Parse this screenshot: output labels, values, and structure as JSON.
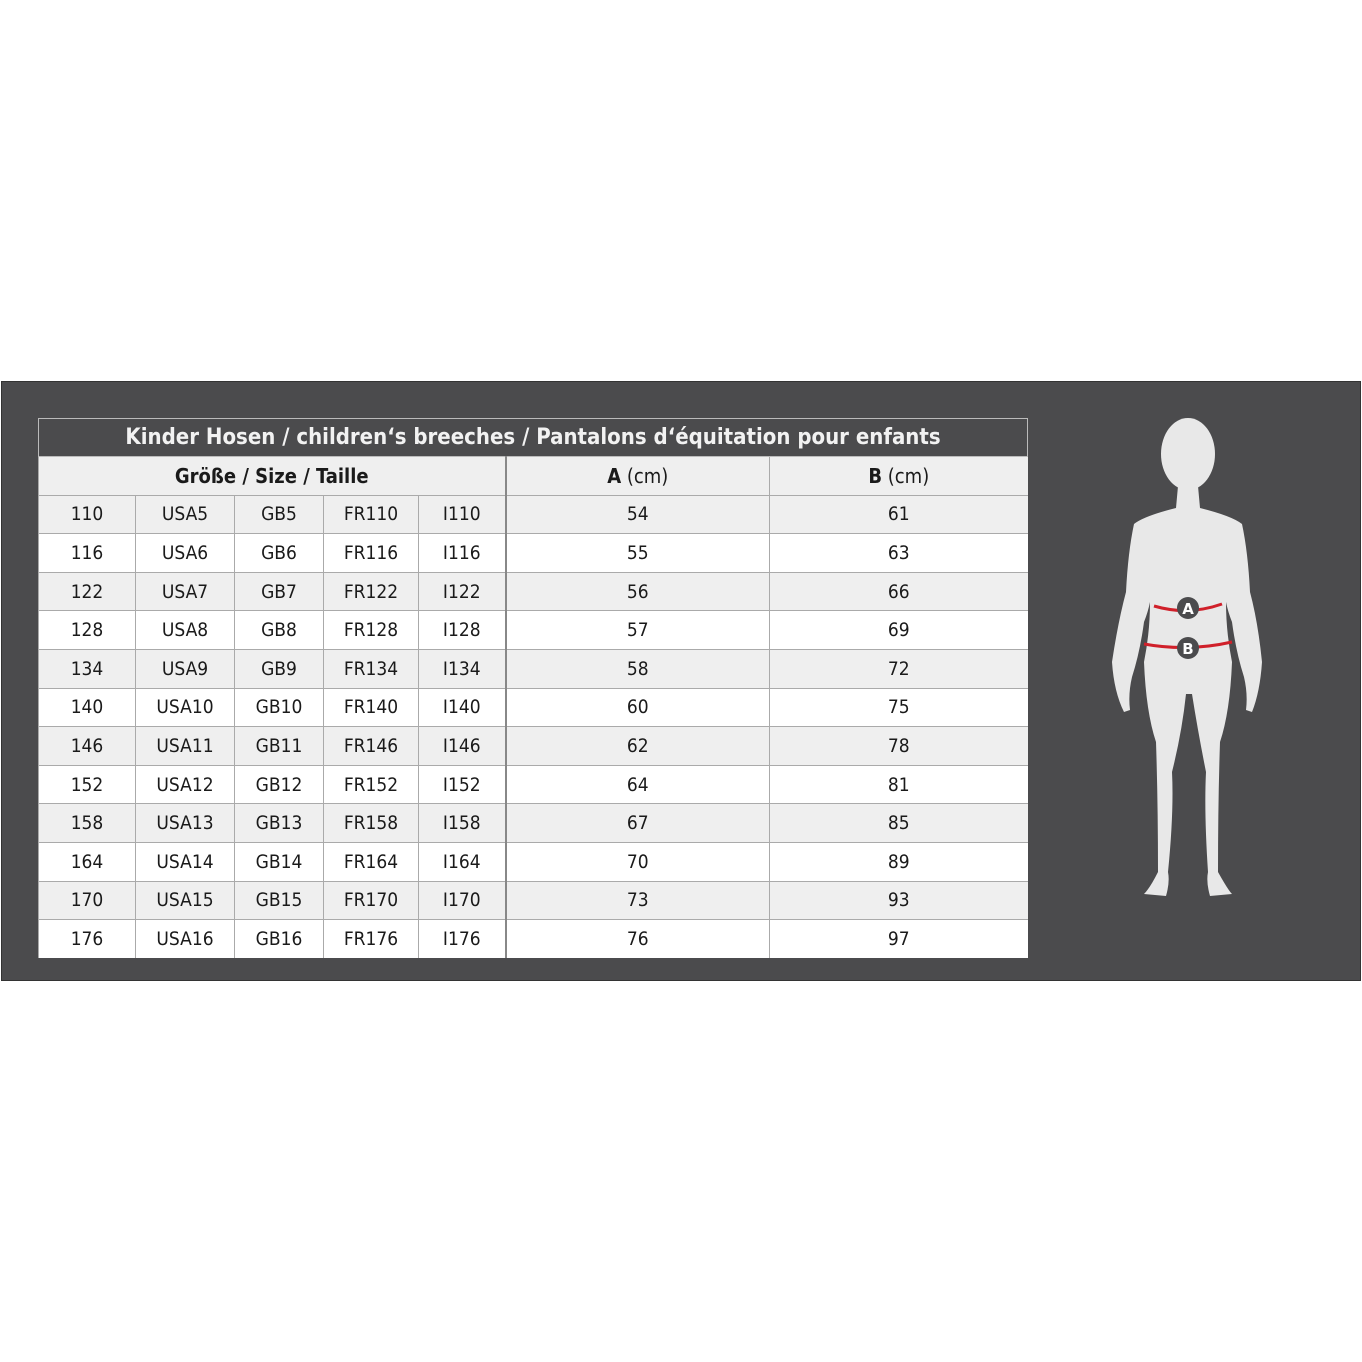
{
  "title": "Kinder Hosen / children‘s breeches /  Pantalons d‘équitation pour enfants",
  "headers": {
    "size": "Größe / Size / Taille",
    "a_label": "A",
    "a_unit": " (cm)",
    "b_label": "B",
    "b_unit": " (cm)"
  },
  "rows": [
    [
      "110",
      "USA5",
      "GB5",
      "FR110",
      "I110",
      "54",
      "61"
    ],
    [
      "116",
      "USA6",
      "GB6",
      "FR116",
      "I116",
      "55",
      "63"
    ],
    [
      "122",
      "USA7",
      "GB7",
      "FR122",
      "I122",
      "56",
      "66"
    ],
    [
      "128",
      "USA8",
      "GB8",
      "FR128",
      "I128",
      "57",
      "69"
    ],
    [
      "134",
      "USA9",
      "GB9",
      "FR134",
      "I134",
      "58",
      "72"
    ],
    [
      "140",
      "USA10",
      "GB10",
      "FR140",
      "I140",
      "60",
      "75"
    ],
    [
      "146",
      "USA11",
      "GB11",
      "FR146",
      "I146",
      "62",
      "78"
    ],
    [
      "152",
      "USA12",
      "GB12",
      "FR152",
      "I152",
      "64",
      "81"
    ],
    [
      "158",
      "USA13",
      "GB13",
      "FR158",
      "I158",
      "67",
      "85"
    ],
    [
      "164",
      "USA14",
      "GB14",
      "FR164",
      "I164",
      "70",
      "89"
    ],
    [
      "170",
      "USA15",
      "GB15",
      "FR170",
      "I170",
      "73",
      "93"
    ],
    [
      "176",
      "USA16",
      "GB16",
      "FR176",
      "I176",
      "76",
      "97"
    ]
  ],
  "figure": {
    "marker_a": "A",
    "marker_b": "B"
  },
  "colors": {
    "panel": "#4b4b4d",
    "measure_line": "#d0202a",
    "body": "#e8e8e8"
  }
}
